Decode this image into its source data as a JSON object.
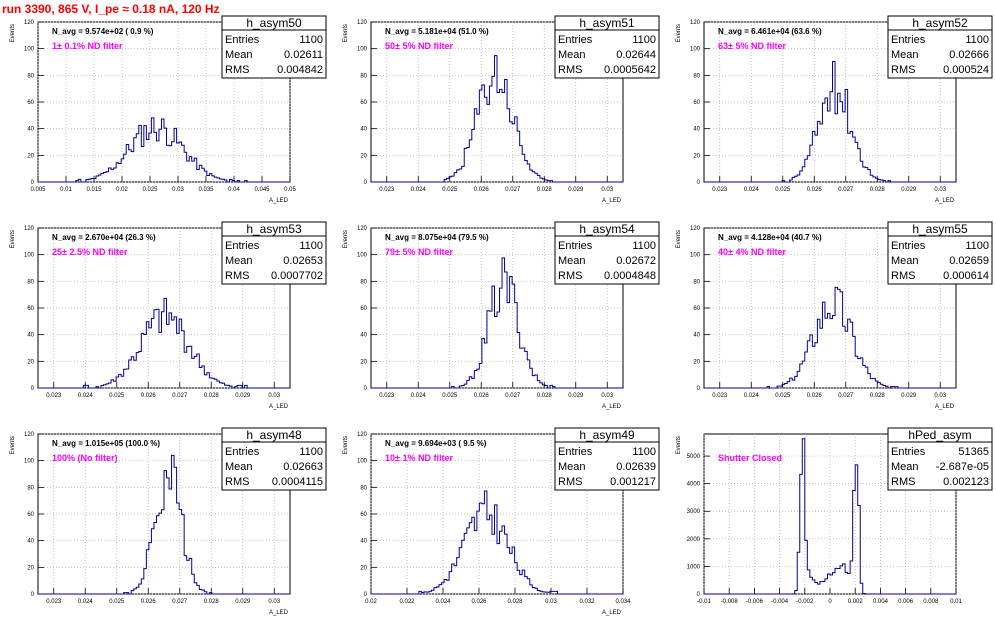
{
  "header": {
    "run_title": "run 3390,   865 V, I_pe ≈ 0.18 nA, 120 Hz"
  },
  "colors": {
    "hist_line": "#000099",
    "filter_text": "#ff00ff",
    "title": "#ff0000",
    "grid": "#aaaaaa"
  },
  "chart_data": [
    {
      "type": "histogram",
      "name": "h_asym50",
      "navg": "N_avg = 9.574e+02 ( 0.9 %)",
      "filter": "1± 0.1% ND filter",
      "stats": {
        "entries_label": "Entries",
        "entries": "1100",
        "mean_label": "Mean",
        "mean": "0.02611",
        "rms_label": "RMS",
        "rms": "0.004842"
      },
      "ylabel": "Events",
      "xlabel": "A_LED",
      "xlim": [
        0.005,
        0.05
      ],
      "ylim": [
        0,
        120
      ],
      "xticks": [
        "0.005",
        "0.01",
        "0.015",
        "0.02",
        "0.025",
        "0.03",
        "0.035",
        "0.04",
        "0.045",
        "0.05"
      ],
      "yticks": [
        "0",
        "20",
        "40",
        "60",
        "80",
        "100",
        "120"
      ],
      "peak": 0.0261,
      "width": 0.0048,
      "height": 42,
      "seed": 11
    },
    {
      "type": "histogram",
      "name": "h_asym51",
      "navg": "N_avg = 5.181e+04 (51.0 %)",
      "filter": "50± 5% ND filter",
      "stats": {
        "entries_label": "Entries",
        "entries": "1100",
        "mean_label": "Mean",
        "mean": "0.02644",
        "rms_label": "RMS",
        "rms": "0.0005642"
      },
      "ylabel": "Events",
      "xlabel": "A_LED",
      "xlim": [
        0.0225,
        0.0305
      ],
      "ylim": [
        0,
        120
      ],
      "xticks": [
        "0.023",
        "0.024",
        "0.025",
        "0.026",
        "0.027",
        "0.028",
        "0.029",
        "0.03"
      ],
      "yticks": [
        "0",
        "20",
        "40",
        "60",
        "80",
        "100",
        "120"
      ],
      "peak": 0.02644,
      "width": 0.00056,
      "height": 83,
      "seed": 23
    },
    {
      "type": "histogram",
      "name": "h_asym52",
      "navg": "N_avg = 6.461e+04 (63.6 %)",
      "filter": "63± 5% ND filter",
      "stats": {
        "entries_label": "Entries",
        "entries": "1100",
        "mean_label": "Mean",
        "mean": "0.02666",
        "rms_label": "RMS",
        "rms": "0.000524"
      },
      "ylabel": "Events",
      "xlabel": "A_LED",
      "xlim": [
        0.0225,
        0.0305
      ],
      "ylim": [
        0,
        120
      ],
      "xticks": [
        "0.023",
        "0.024",
        "0.025",
        "0.026",
        "0.027",
        "0.028",
        "0.029",
        "0.03"
      ],
      "yticks": [
        "0",
        "20",
        "40",
        "60",
        "80",
        "100",
        "120"
      ],
      "peak": 0.02666,
      "width": 0.00052,
      "height": 73,
      "seed": 37
    },
    {
      "type": "histogram",
      "name": "h_asym53",
      "navg": "N_avg = 2.670e+04 (26.3 %)",
      "filter": "25± 2.5% ND filter",
      "stats": {
        "entries_label": "Entries",
        "entries": "1100",
        "mean_label": "Mean",
        "mean": "0.02653",
        "rms_label": "RMS",
        "rms": "0.0007702"
      },
      "ylabel": "Events",
      "xlabel": "A_LED",
      "xlim": [
        0.0225,
        0.0305
      ],
      "ylim": [
        0,
        120
      ],
      "xticks": [
        "0.023",
        "0.024",
        "0.025",
        "0.026",
        "0.027",
        "0.028",
        "0.029",
        "0.03"
      ],
      "yticks": [
        "0",
        "20",
        "40",
        "60",
        "80",
        "100",
        "120"
      ],
      "peak": 0.02653,
      "width": 0.00077,
      "height": 54,
      "seed": 41
    },
    {
      "type": "histogram",
      "name": "h_asym54",
      "navg": "N_avg = 8.075e+04 (79.5 %)",
      "filter": "79± 5% ND filter",
      "stats": {
        "entries_label": "Entries",
        "entries": "1100",
        "mean_label": "Mean",
        "mean": "0.02672",
        "rms_label": "RMS",
        "rms": "0.0004848"
      },
      "ylabel": "Events",
      "xlabel": "A_LED",
      "xlim": [
        0.0225,
        0.0305
      ],
      "ylim": [
        0,
        120
      ],
      "xticks": [
        "0.023",
        "0.024",
        "0.025",
        "0.026",
        "0.027",
        "0.028",
        "0.029",
        "0.03"
      ],
      "yticks": [
        "0",
        "20",
        "40",
        "60",
        "80",
        "100",
        "120"
      ],
      "peak": 0.02672,
      "width": 0.00048,
      "height": 80,
      "seed": 53
    },
    {
      "type": "histogram",
      "name": "h_asym55",
      "navg": "N_avg = 4.128e+04 (40.7 %)",
      "filter": "40± 4% ND filter",
      "stats": {
        "entries_label": "Entries",
        "entries": "1100",
        "mean_label": "Mean",
        "mean": "0.02659",
        "rms_label": "RMS",
        "rms": "0.000614"
      },
      "ylabel": "Events",
      "xlabel": "A_LED",
      "xlim": [
        0.0225,
        0.0305
      ],
      "ylim": [
        0,
        120
      ],
      "xticks": [
        "0.023",
        "0.024",
        "0.025",
        "0.026",
        "0.027",
        "0.028",
        "0.029",
        "0.03"
      ],
      "yticks": [
        "0",
        "20",
        "40",
        "60",
        "80",
        "100",
        "120"
      ],
      "peak": 0.02659,
      "width": 0.00061,
      "height": 66,
      "seed": 67
    },
    {
      "type": "histogram",
      "name": "h_asym48",
      "navg": "N_avg = 1.015e+05 (100.0 %)",
      "filter": "100% (No filter)",
      "stats": {
        "entries_label": "Entries",
        "entries": "1100",
        "mean_label": "Mean",
        "mean": "0.02663",
        "rms_label": "RMS",
        "rms": "0.0004115"
      },
      "ylabel": "Events",
      "xlabel": "A_LED",
      "xlim": [
        0.0225,
        0.0305
      ],
      "ylim": [
        0,
        120
      ],
      "xticks": [
        "0.023",
        "0.024",
        "0.025",
        "0.026",
        "0.027",
        "0.028",
        "0.029",
        "0.03"
      ],
      "yticks": [
        "0",
        "20",
        "40",
        "60",
        "80",
        "100",
        "120"
      ],
      "peak": 0.02663,
      "width": 0.00041,
      "height": 96,
      "seed": 71
    },
    {
      "type": "histogram",
      "name": "h_asym49",
      "navg": "N_avg = 9.694e+03 ( 9.5 %)",
      "filter": "10± 1% ND filter",
      "stats": {
        "entries_label": "Entries",
        "entries": "1100",
        "mean_label": "Mean",
        "mean": "0.02639",
        "rms_label": "RMS",
        "rms": "0.001217"
      },
      "ylabel": "Events",
      "xlabel": "A_LED",
      "xlim": [
        0.02,
        0.034
      ],
      "ylim": [
        0,
        120
      ],
      "xticks": [
        "0.02",
        "0.022",
        "0.024",
        "0.026",
        "0.028",
        "0.03",
        "0.032",
        "0.034"
      ],
      "yticks": [
        "0",
        "20",
        "40",
        "60",
        "80",
        "100",
        "120"
      ],
      "peak": 0.02639,
      "width": 0.00122,
      "height": 62,
      "seed": 83
    },
    {
      "type": "histogram",
      "name": "hPed_asym",
      "navg": "",
      "filter": "Shutter Closed",
      "stats": {
        "entries_label": "Entries",
        "entries": "51365",
        "mean_label": "Mean",
        "mean": "-2.687e-05",
        "rms_label": "RMS",
        "rms": "0.002123"
      },
      "ylabel": "Events",
      "xlabel": "",
      "xlim": [
        -0.01,
        0.01
      ],
      "ylim": [
        0,
        5800
      ],
      "xticks": [
        "-0.01",
        "-0.008",
        "-0.006",
        "-0.004",
        "-0.002",
        "0",
        "0.002",
        "0.004",
        "0.006",
        "0.008",
        "0.01"
      ],
      "yticks": [
        "0",
        "1000",
        "2000",
        "3000",
        "4000",
        "5000"
      ],
      "bimodal": true,
      "seed": 97
    }
  ]
}
